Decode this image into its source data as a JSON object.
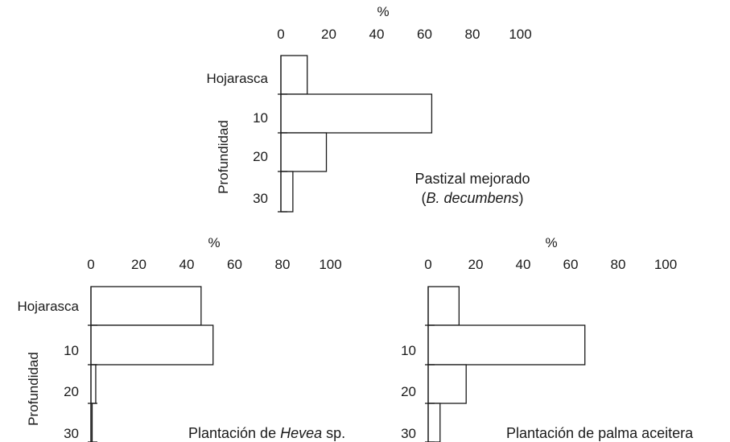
{
  "chart_data": [
    {
      "type": "bar",
      "orientation": "horizontal",
      "unit_label": "%",
      "ylabel": "Profundidad",
      "categories": [
        "Hojarasca",
        "10",
        "20",
        "30"
      ],
      "values": [
        11,
        63,
        19,
        5
      ],
      "xlim": [
        0,
        100
      ],
      "xticks": [
        "0",
        "20",
        "40",
        "60",
        "80",
        "100"
      ],
      "caption_lines": [
        [
          {
            "text": "Pastizal mejorado",
            "italic": false
          }
        ],
        [
          {
            "text": "(",
            "italic": false
          },
          {
            "text": "B. decumbens",
            "italic": true
          },
          {
            "text": ")",
            "italic": false
          }
        ]
      ]
    },
    {
      "type": "bar",
      "orientation": "horizontal",
      "unit_label": "%",
      "ylabel": "Profundidad",
      "categories": [
        "Hojarasca",
        "10",
        "20",
        "30"
      ],
      "values": [
        46,
        51,
        2,
        0.5
      ],
      "xlim": [
        0,
        100
      ],
      "xticks": [
        "0",
        "20",
        "40",
        "60",
        "80",
        "100"
      ],
      "caption_lines": [
        [
          {
            "text": "Plantación de ",
            "italic": false
          },
          {
            "text": "Hevea",
            "italic": true
          },
          {
            "text": " sp.",
            "italic": false
          }
        ]
      ]
    },
    {
      "type": "bar",
      "orientation": "horizontal",
      "unit_label": "%",
      "ylabel": "",
      "categories": [
        "",
        "10",
        "20",
        "30"
      ],
      "values": [
        13,
        66,
        16,
        5
      ],
      "xlim": [
        0,
        100
      ],
      "xticks": [
        "0",
        "20",
        "40",
        "60",
        "80",
        "100"
      ],
      "caption_lines": [
        [
          {
            "text": "Plantación de palma aceitera",
            "italic": false
          }
        ]
      ]
    }
  ]
}
